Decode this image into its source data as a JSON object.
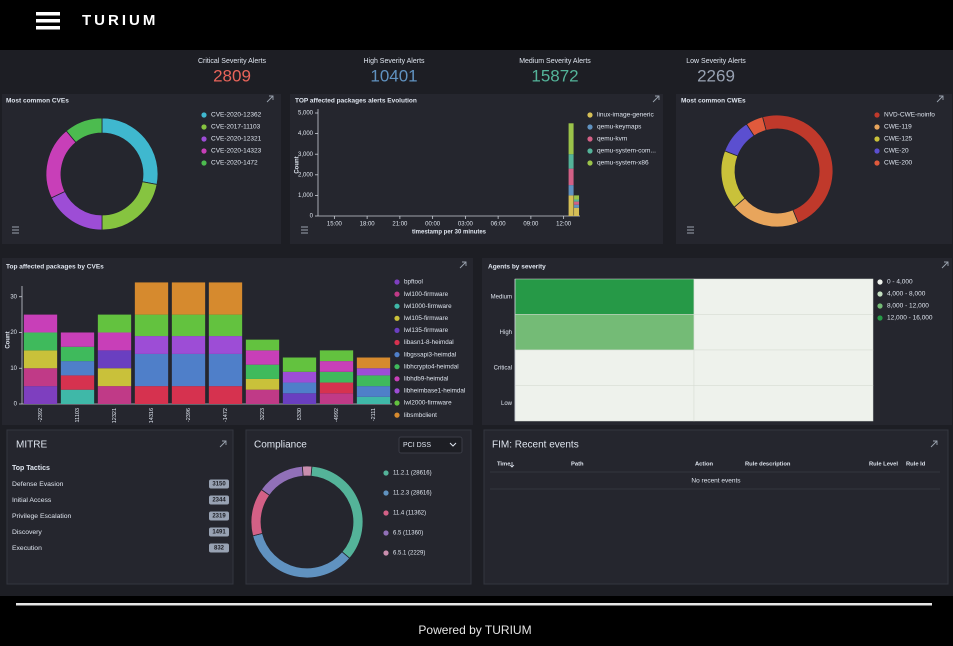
{
  "header": {
    "brand": "TURIUM"
  },
  "stats": [
    {
      "label": "Critical Severity Alerts",
      "value": 2809,
      "color": "#e8645a"
    },
    {
      "label": "High Severity Alerts",
      "value": 10401,
      "color": "#6092c0"
    },
    {
      "label": "Medium Severity Alerts",
      "value": 15872,
      "color": "#54b399"
    },
    {
      "label": "Low Severity Alerts",
      "value": 2269,
      "color": "#98a2b3"
    }
  ],
  "chart_data": [
    {
      "type": "donut",
      "title": "Most common CVEs",
      "categories": [
        "CVE-2020-12362",
        "CVE-2017-11103",
        "CVE-2020-12321",
        "CVE-2020-14323",
        "CVE-2020-1472"
      ],
      "values": [
        28,
        22,
        18,
        21,
        11
      ],
      "colors": [
        "#3fb8cf",
        "#86c440",
        "#9d4dd6",
        "#c83fb8",
        "#4cbb4f"
      ]
    },
    {
      "type": "stacked-time-bar",
      "title": "TOP affected packages alerts Evolution",
      "xlabel": "timestamp per 30 minutes",
      "ylabel": "Count",
      "x": [
        "12:30",
        "13:00"
      ],
      "xlim": [
        "13:30",
        "13:30"
      ],
      "xticks": [
        "15:00",
        "18:00",
        "21:00",
        "00:00",
        "03:00",
        "06:00",
        "09:00",
        "12:00"
      ],
      "ylim": [
        0,
        5000
      ],
      "yticks": [
        0,
        {
          "value": 1000,
          "label": "1,000"
        },
        {
          "value": 2000,
          "label": "2,000"
        },
        {
          "value": 3000,
          "label": "3,000"
        },
        {
          "value": 4000,
          "label": "4,000"
        },
        {
          "value": 5000,
          "label": "5,000"
        }
      ],
      "series": [
        {
          "name": "linux-image-generic",
          "color": "#d6bf57",
          "values": [
            1000,
            400
          ]
        },
        {
          "name": "qemu-keymaps",
          "color": "#6092c0",
          "values": [
            500,
            150
          ]
        },
        {
          "name": "qemu-kvm",
          "color": "#d36086",
          "values": [
            800,
            150
          ]
        },
        {
          "name": "qemu-system-com...",
          "color": "#54b399",
          "values": [
            700,
            100
          ]
        },
        {
          "name": "qemu-system-x86",
          "color": "#9bc34a",
          "values": [
            1500,
            200
          ]
        }
      ]
    },
    {
      "type": "donut",
      "title": "Most common CWEs",
      "categories": [
        "NVD-CWE-noinfo",
        "CWE-119",
        "CWE-125",
        "CWE-20",
        "CWE-200"
      ],
      "values": [
        48,
        20,
        17,
        10,
        5
      ],
      "colors": [
        "#c0392b",
        "#e8a55c",
        "#c9c13a",
        "#5b4fd0",
        "#e05a3c"
      ]
    },
    {
      "type": "stacked-bar",
      "title": "Top affected packages by CVEs",
      "ylabel": "Count",
      "categories": [
        "-2392",
        "11103",
        "12321",
        "14316",
        "-2396",
        "-1472",
        "3223",
        "5330",
        "-4992",
        "-2111"
      ],
      "ylim": [
        0,
        33
      ],
      "yticks": [
        0,
        10,
        20,
        30
      ],
      "series": [
        {
          "name": "bpftool",
          "color": "#7e3fbf",
          "values": [
            5,
            0,
            0,
            0,
            0,
            0,
            0,
            0,
            0,
            0
          ]
        },
        {
          "name": "lwl100-firmware",
          "color": "#c03a87",
          "values": [
            5,
            0,
            5,
            0,
            0,
            0,
            4,
            0,
            3,
            0
          ]
        },
        {
          "name": "lwl1000-firmware",
          "color": "#3fb8a8",
          "values": [
            0,
            4,
            0,
            0,
            0,
            0,
            0,
            0,
            0,
            2
          ]
        },
        {
          "name": "lwl105-firmware",
          "color": "#c9c13a",
          "values": [
            5,
            0,
            5,
            0,
            0,
            0,
            3,
            0,
            0,
            0
          ]
        },
        {
          "name": "lwl135-firmware",
          "color": "#6a3fc0",
          "values": [
            0,
            0,
            5,
            0,
            0,
            0,
            0,
            3,
            0,
            0
          ]
        },
        {
          "name": "libasn1-8-heimdal",
          "color": "#d6324f",
          "values": [
            0,
            4,
            0,
            5,
            5,
            5,
            0,
            0,
            3,
            0
          ]
        },
        {
          "name": "libgssapi3-heimdal",
          "color": "#4f7fc9",
          "values": [
            0,
            4,
            0,
            9,
            9,
            9,
            0,
            3,
            0,
            3
          ]
        },
        {
          "name": "libhcrypto4-heimdal",
          "color": "#3fba5c",
          "values": [
            5,
            4,
            0,
            0,
            0,
            0,
            4,
            0,
            3,
            3
          ]
        },
        {
          "name": "libhdb9-heimdal",
          "color": "#c83fb8",
          "values": [
            5,
            4,
            5,
            0,
            0,
            0,
            4,
            0,
            3,
            0
          ]
        },
        {
          "name": "libheimbase1-heimdal",
          "color": "#9d4dd6",
          "values": [
            0,
            0,
            0,
            5,
            5,
            5,
            0,
            3,
            0,
            2
          ]
        },
        {
          "name": "lwl2000-firmware",
          "color": "#63c23f",
          "values": [
            0,
            0,
            5,
            6,
            6,
            6,
            3,
            4,
            3,
            0
          ]
        },
        {
          "name": "libsmbclient",
          "color": "#d68a2e",
          "values": [
            0,
            0,
            0,
            9,
            9,
            9,
            0,
            0,
            0,
            3
          ]
        }
      ]
    },
    {
      "type": "heatmap",
      "title": "Agents by severity",
      "x_categories": [
        null,
        null
      ],
      "y_categories": [
        "Medium",
        "High",
        "Critical",
        "Low"
      ],
      "values": [
        [
          15872,
          0
        ],
        [
          10401,
          0
        ],
        [
          2809,
          0
        ],
        [
          2269,
          0
        ]
      ],
      "ranges": [
        {
          "from": 0,
          "to": 4000,
          "label": "0 - 4,000",
          "color": "#eef2ec"
        },
        {
          "from": 4000,
          "to": 8000,
          "label": "4,000 - 8,000",
          "color": "#c3dfc1"
        },
        {
          "from": 8000,
          "to": 12000,
          "label": "8,000 - 12,000",
          "color": "#74bb76"
        },
        {
          "from": 12000,
          "to": 16000,
          "label": "12,000 - 16,000",
          "color": "#269947"
        }
      ]
    },
    {
      "type": "donut",
      "title": "Compliance",
      "selector": "PCI DSS",
      "categories": [
        "11.2.1",
        "11.2.3",
        "11.4",
        "6.5",
        "6.5.1"
      ],
      "labels": [
        "11.2.1 (28616)",
        "11.2.3 (28616)",
        "11.4 (11362)",
        "6.5 (11360)",
        "6.5.1 (2229)"
      ],
      "values": [
        28616,
        28616,
        11362,
        11360,
        2229
      ],
      "colors": [
        "#54b399",
        "#6092c0",
        "#d36086",
        "#9170b8",
        "#ca8eae"
      ]
    }
  ],
  "mitre": {
    "title": "MITRE",
    "subtitle": "Top Tactics",
    "rows": [
      {
        "name": "Defense Evasion",
        "count": 3150
      },
      {
        "name": "Initial Access",
        "count": 2344
      },
      {
        "name": "Privilege Escalation",
        "count": 2319
      },
      {
        "name": "Discovery",
        "count": 1491
      },
      {
        "name": "Execution",
        "count": 832
      }
    ]
  },
  "fim": {
    "title": "FIM: Recent events",
    "columns": [
      "Time",
      "Path",
      "Action",
      "Rule description",
      "Rule Level",
      "Rule Id"
    ],
    "empty": "No recent events"
  },
  "footer": {
    "text": "Powered by TURIUM"
  }
}
